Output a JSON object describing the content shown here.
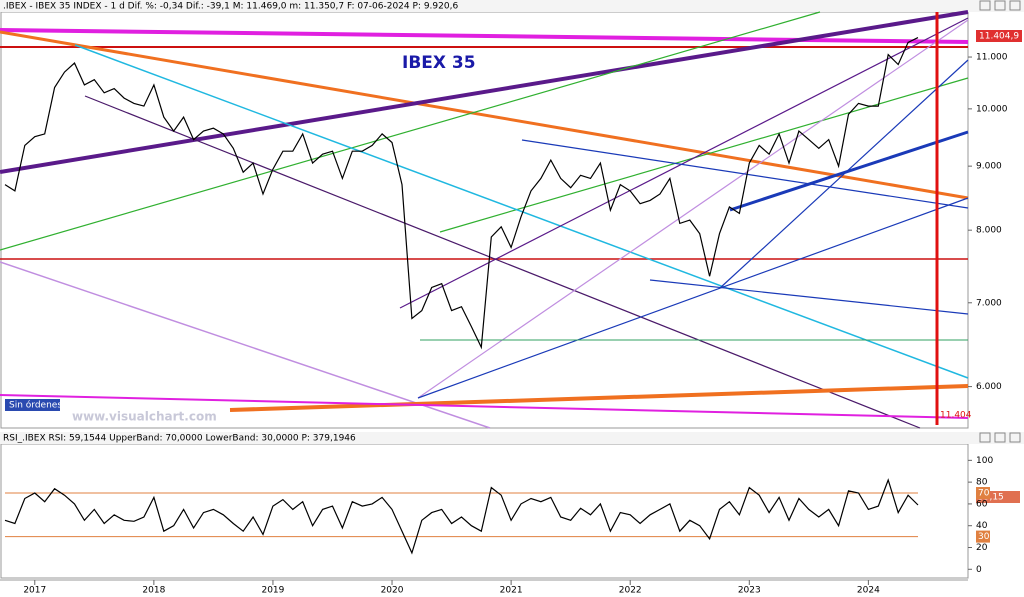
{
  "chart_data": [
    {
      "type": "line",
      "title": "IBEX 35",
      "header": ".IBEX - IBEX 35 INDEX - 1 d  Dif. %: -0,34  Dif.: -39,1  M: 11.469,0  m: 11.350,7  F: 07-06-2024  P: 9.920,6",
      "watermark": "www.visualchart.com",
      "status": "Sin órdenes",
      "last_label": "11.404,9",
      "cursor_label": "11.404",
      "log_scale": true,
      "ylim": [
        5560,
        11950
      ],
      "yticks": [
        {
          "value": 6000,
          "label": "6.000"
        },
        {
          "value": 7000,
          "label": "7.000"
        },
        {
          "value": 8000,
          "label": "8.000"
        },
        {
          "value": 9000,
          "label": "9.000"
        },
        {
          "value": 10000,
          "label": "10.000"
        },
        {
          "value": 11000,
          "label": "11.000"
        }
      ],
      "series": [
        {
          "name": "IBEX",
          "color": "#000000",
          "values": [
            8700,
            8600,
            9350,
            9500,
            9550,
            10400,
            10700,
            10880,
            10450,
            10550,
            10300,
            10380,
            10200,
            10100,
            10050,
            10450,
            9850,
            9600,
            9850,
            9450,
            9600,
            9650,
            9550,
            9300,
            8900,
            9050,
            8550,
            8950,
            9250,
            9250,
            9550,
            9050,
            9200,
            9250,
            8800,
            9250,
            9250,
            9350,
            9550,
            9400,
            8700,
            6800,
            6900,
            7200,
            7250,
            6900,
            6950,
            6700,
            6450,
            7900,
            8050,
            7750,
            8200,
            8600,
            8800,
            9100,
            8800,
            8650,
            8850,
            8800,
            9050,
            8300,
            8700,
            8600,
            8400,
            8450,
            8550,
            8800,
            8100,
            8150,
            7950,
            7350,
            7950,
            8350,
            8250,
            9050,
            9350,
            9200,
            9550,
            9050,
            9600,
            9450,
            9300,
            9450,
            9000,
            9900,
            10100,
            10050,
            10050,
            11050,
            10850,
            11300,
            11400
          ]
        }
      ]
    },
    {
      "type": "line",
      "header": "RSI_.IBEX  RSI: 59,1544  UpperBand: 70,0000  LowerBand: 30,0000  P: 379,1946",
      "last_label": "59,15",
      "bands": [
        70,
        30
      ],
      "band_color": "#e08040",
      "ylim": [
        -8,
        115
      ],
      "yticks": [
        0,
        20,
        40,
        60,
        80,
        100
      ],
      "categories": [
        null,
        null,
        null,
        "2017",
        null,
        null,
        null,
        null,
        null,
        null,
        null,
        null,
        null,
        null,
        null,
        "2018",
        null,
        null,
        null,
        null,
        null,
        null,
        null,
        null,
        null,
        null,
        null,
        "2019",
        null,
        null,
        null,
        null,
        null,
        null,
        null,
        null,
        null,
        null,
        null,
        "2020",
        null,
        null,
        null,
        null,
        null,
        null,
        null,
        null,
        null,
        null,
        null,
        "2021",
        null,
        null,
        null,
        null,
        null,
        null,
        null,
        null,
        null,
        null,
        null,
        "2022",
        null,
        null,
        null,
        null,
        null,
        null,
        null,
        null,
        null,
        null,
        null,
        "2023",
        null,
        null,
        null,
        null,
        null,
        null,
        null,
        null,
        null,
        null,
        null,
        "2024",
        null,
        null,
        null,
        null,
        null
      ],
      "series": [
        {
          "name": "RSI",
          "color": "#000000",
          "values": [
            45,
            42,
            65,
            70,
            62,
            74,
            68,
            60,
            45,
            55,
            42,
            50,
            45,
            44,
            48,
            66,
            35,
            40,
            55,
            38,
            52,
            55,
            50,
            42,
            35,
            48,
            32,
            58,
            64,
            55,
            62,
            40,
            55,
            58,
            38,
            62,
            58,
            60,
            66,
            55,
            35,
            15,
            45,
            52,
            55,
            42,
            48,
            40,
            35,
            75,
            68,
            45,
            60,
            65,
            62,
            66,
            48,
            45,
            56,
            50,
            60,
            35,
            52,
            50,
            42,
            50,
            55,
            60,
            35,
            45,
            40,
            28,
            55,
            62,
            50,
            75,
            68,
            52,
            66,
            45,
            65,
            55,
            48,
            55,
            40,
            72,
            70,
            55,
            58,
            82,
            52,
            68,
            59
          ]
        }
      ]
    }
  ]
}
